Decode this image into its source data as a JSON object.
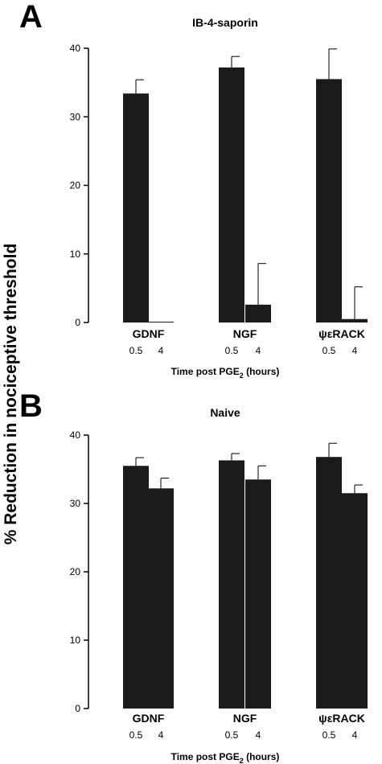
{
  "figure": {
    "ylabel": "% Reduction in nociceptive threshold"
  },
  "colors": {
    "bar": "#1a1a1a",
    "axis": "#000000"
  },
  "chart_data": [
    {
      "type": "bar",
      "panel_label": "A",
      "title": "IB-4-saporin",
      "ylim": [
        0,
        40
      ],
      "yticks": [
        "0",
        "10",
        "20",
        "30",
        "40"
      ],
      "groups": [
        "GDNF",
        "NGF",
        "ψεRACK"
      ],
      "times": [
        "0.5",
        "4"
      ],
      "xlabel_main": "Time post PGE",
      "xlabel_sub": "2",
      "xlabel_end": " (hours)",
      "grid": false,
      "values": [
        [
          33.4,
          0.1
        ],
        [
          37.2,
          2.6
        ],
        [
          35.5,
          0.5
        ]
      ],
      "errors": [
        [
          2.0,
          0.0
        ],
        [
          1.6,
          6.0
        ],
        [
          4.4,
          4.7
        ]
      ]
    },
    {
      "type": "bar",
      "panel_label": "B",
      "title": "Naive",
      "ylim": [
        0,
        40
      ],
      "yticks": [
        "0",
        "10",
        "20",
        "30",
        "40"
      ],
      "groups": [
        "GDNF",
        "NGF",
        "ψεRACK"
      ],
      "times": [
        "0.5",
        "4"
      ],
      "xlabel_main": "Time post PGE",
      "xlabel_sub": "2",
      "xlabel_end": " (hours)",
      "grid": false,
      "values": [
        [
          35.5,
          32.2
        ],
        [
          36.3,
          33.5
        ],
        [
          36.8,
          31.5
        ]
      ],
      "errors": [
        [
          1.2,
          1.5
        ],
        [
          1.0,
          2.0
        ],
        [
          2.0,
          1.2
        ]
      ]
    }
  ]
}
